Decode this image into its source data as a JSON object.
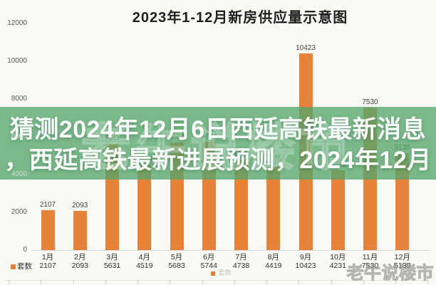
{
  "title": "2023年1-12月新房供应量示意图",
  "overlay_banner": {
    "line1": "猜测2024年12月6日西延高铁最新消息",
    "line2": "，西延高铁最新进展预测，2024年12月"
  },
  "watermark": {
    "text": "老牛说楼市"
  },
  "colors": {
    "bar": "#e6823a",
    "banner_green": "rgba(87,167,109,0.78)",
    "axis_label": "#595959",
    "data_label": "#3f3f3f"
  },
  "chart_data": {
    "type": "bar",
    "title": "2023年1-12月新房供应量示意图",
    "categories": [
      "1月",
      "2月",
      "3月",
      "4月",
      "5月",
      "6月",
      "7月",
      "8月",
      "9月",
      "10月",
      "11月",
      "12月"
    ],
    "series": [
      {
        "name": "套数",
        "values": [
          2107,
          2093,
          5631,
          4519,
          5683,
          5744,
          4738,
          4419,
          10423,
          4231,
          7530,
          5135
        ]
      }
    ],
    "xlabel": "",
    "ylabel": "",
    "ylim": [
      0,
      12000
    ],
    "yticks": [
      0,
      2000,
      4000,
      6000,
      8000,
      10000,
      12000
    ],
    "grid": false,
    "legend_position": "bottom",
    "data_labels": true,
    "table_row": {
      "header": "套数",
      "values": [
        2107,
        2093,
        5631,
        4519,
        5683,
        5744,
        4738,
        4419,
        10423,
        4231,
        7530,
        5135
      ]
    }
  }
}
